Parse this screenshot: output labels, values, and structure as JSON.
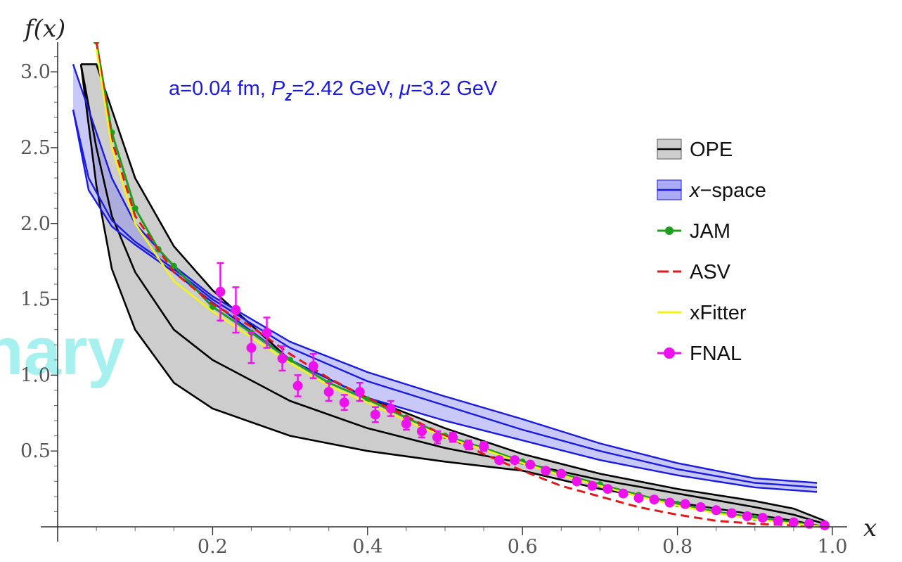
{
  "chart_data": {
    "type": "line",
    "annotation": "a=0.04 fm, P_z=2.42 GeV, μ=3.2 GeV",
    "watermark": "nary",
    "xlabel": "x",
    "ylabel": "f(x)",
    "xlim": [
      0.0,
      1.0
    ],
    "ylim": [
      0.0,
      3.2
    ],
    "x_ticks": [
      "0.2",
      "0.4",
      "0.6",
      "0.8",
      "1.0"
    ],
    "y_ticks": [
      "0.5",
      "1.0",
      "1.5",
      "2.0",
      "2.5",
      "3.0"
    ],
    "legend_position": "right",
    "series": [
      {
        "name": "OPE",
        "kind": "band",
        "color": "#000000",
        "fill": "#c8c8c8",
        "x": [
          0.03,
          0.05,
          0.07,
          0.1,
          0.15,
          0.2,
          0.3,
          0.4,
          0.5,
          0.6,
          0.7,
          0.8,
          0.9,
          0.95,
          0.99
        ],
        "upper": [
          3.05,
          3.05,
          2.75,
          2.3,
          1.85,
          1.56,
          1.1,
          0.85,
          0.65,
          0.48,
          0.35,
          0.25,
          0.17,
          0.12,
          0.04
        ],
        "central": [
          3.05,
          2.5,
          2.05,
          1.68,
          1.3,
          1.1,
          0.83,
          0.65,
          0.52,
          0.42,
          0.31,
          0.22,
          0.13,
          0.08,
          0.02
        ],
        "lower": [
          3.05,
          2.25,
          1.7,
          1.3,
          0.95,
          0.78,
          0.6,
          0.5,
          0.43,
          0.37,
          0.25,
          0.16,
          0.08,
          0.04,
          0.0
        ]
      },
      {
        "name": "x−space",
        "kind": "band",
        "color": "#1a1ae0",
        "fill": "#8888f2",
        "x": [
          0.02,
          0.04,
          0.07,
          0.1,
          0.15,
          0.2,
          0.3,
          0.4,
          0.5,
          0.6,
          0.7,
          0.8,
          0.9,
          0.98
        ],
        "upper": [
          3.05,
          2.75,
          2.3,
          2.0,
          1.72,
          1.52,
          1.22,
          1.02,
          0.86,
          0.71,
          0.55,
          0.42,
          0.32,
          0.29
        ],
        "central": [
          2.75,
          2.3,
          2.02,
          1.88,
          1.7,
          1.5,
          1.18,
          0.96,
          0.8,
          0.64,
          0.5,
          0.38,
          0.29,
          0.26
        ],
        "lower": [
          2.75,
          2.22,
          1.98,
          1.86,
          1.68,
          1.48,
          1.1,
          0.85,
          0.7,
          0.57,
          0.44,
          0.34,
          0.26,
          0.23
        ]
      },
      {
        "name": "JAM",
        "kind": "line-dots",
        "color": "#1e9e1e",
        "x": [
          0.05,
          0.07,
          0.1,
          0.13,
          0.15,
          0.2,
          0.25,
          0.3,
          0.35,
          0.4,
          0.45,
          0.5,
          0.55,
          0.6,
          0.65,
          0.7,
          0.75,
          0.8,
          0.85,
          0.9,
          0.95,
          0.99
        ],
        "values": [
          3.2,
          2.6,
          2.1,
          1.83,
          1.72,
          1.45,
          1.28,
          1.1,
          0.95,
          0.84,
          0.72,
          0.6,
          0.52,
          0.43,
          0.35,
          0.28,
          0.21,
          0.15,
          0.1,
          0.06,
          0.03,
          0.0
        ]
      },
      {
        "name": "ASV",
        "kind": "dashed",
        "color": "#e01a1a",
        "x": [
          0.05,
          0.07,
          0.1,
          0.15,
          0.2,
          0.25,
          0.3,
          0.35,
          0.4,
          0.45,
          0.5,
          0.55,
          0.6,
          0.65,
          0.7,
          0.75,
          0.8,
          0.85,
          0.9,
          0.95,
          0.99
        ],
        "values": [
          3.2,
          2.55,
          2.05,
          1.68,
          1.47,
          1.32,
          1.14,
          0.98,
          0.85,
          0.73,
          0.6,
          0.48,
          0.37,
          0.27,
          0.2,
          0.13,
          0.08,
          0.04,
          0.02,
          0.01,
          0.0
        ]
      },
      {
        "name": "xFitter",
        "kind": "line",
        "color": "#f4f41a",
        "x": [
          0.05,
          0.07,
          0.1,
          0.15,
          0.2,
          0.25,
          0.3,
          0.35,
          0.4,
          0.45,
          0.5,
          0.55,
          0.6,
          0.65,
          0.7,
          0.75,
          0.8,
          0.85,
          0.9,
          0.95,
          0.99
        ],
        "values": [
          3.15,
          2.5,
          2.0,
          1.62,
          1.42,
          1.25,
          1.08,
          0.93,
          0.82,
          0.7,
          0.59,
          0.51,
          0.42,
          0.34,
          0.27,
          0.2,
          0.14,
          0.09,
          0.05,
          0.02,
          0.0
        ]
      },
      {
        "name": "FNAL",
        "kind": "points-errorbars",
        "color": "#ee11ee",
        "points": [
          {
            "x": 0.21,
            "y": 1.55,
            "err": 0.19
          },
          {
            "x": 0.23,
            "y": 1.43,
            "err": 0.15
          },
          {
            "x": 0.25,
            "y": 1.18,
            "err": 0.1
          },
          {
            "x": 0.27,
            "y": 1.28,
            "err": 0.1
          },
          {
            "x": 0.29,
            "y": 1.11,
            "err": 0.08
          },
          {
            "x": 0.31,
            "y": 0.93,
            "err": 0.07
          },
          {
            "x": 0.33,
            "y": 1.06,
            "err": 0.08
          },
          {
            "x": 0.35,
            "y": 0.89,
            "err": 0.06
          },
          {
            "x": 0.37,
            "y": 0.82,
            "err": 0.05
          },
          {
            "x": 0.39,
            "y": 0.89,
            "err": 0.06
          },
          {
            "x": 0.41,
            "y": 0.74,
            "err": 0.05
          },
          {
            "x": 0.43,
            "y": 0.78,
            "err": 0.05
          },
          {
            "x": 0.45,
            "y": 0.68,
            "err": 0.04
          },
          {
            "x": 0.47,
            "y": 0.63,
            "err": 0.04
          },
          {
            "x": 0.49,
            "y": 0.59,
            "err": 0.04
          },
          {
            "x": 0.51,
            "y": 0.59,
            "err": 0.03
          },
          {
            "x": 0.53,
            "y": 0.54,
            "err": 0.03
          },
          {
            "x": 0.55,
            "y": 0.53,
            "err": 0.03
          },
          {
            "x": 0.57,
            "y": 0.44,
            "err": 0.02
          },
          {
            "x": 0.59,
            "y": 0.44,
            "err": 0.02
          },
          {
            "x": 0.61,
            "y": 0.41,
            "err": 0.02
          },
          {
            "x": 0.63,
            "y": 0.37,
            "err": 0.02
          },
          {
            "x": 0.65,
            "y": 0.35,
            "err": 0.02
          },
          {
            "x": 0.67,
            "y": 0.3,
            "err": 0.02
          },
          {
            "x": 0.69,
            "y": 0.27,
            "err": 0.02
          },
          {
            "x": 0.71,
            "y": 0.25,
            "err": 0.02
          },
          {
            "x": 0.73,
            "y": 0.22,
            "err": 0.02
          },
          {
            "x": 0.75,
            "y": 0.19,
            "err": 0.02
          },
          {
            "x": 0.77,
            "y": 0.18,
            "err": 0.02
          },
          {
            "x": 0.79,
            "y": 0.16,
            "err": 0.02
          },
          {
            "x": 0.81,
            "y": 0.15,
            "err": 0.02
          },
          {
            "x": 0.83,
            "y": 0.13,
            "err": 0.02
          },
          {
            "x": 0.85,
            "y": 0.11,
            "err": 0.02
          },
          {
            "x": 0.87,
            "y": 0.09,
            "err": 0.02
          },
          {
            "x": 0.89,
            "y": 0.07,
            "err": 0.02
          },
          {
            "x": 0.91,
            "y": 0.06,
            "err": 0.02
          },
          {
            "x": 0.93,
            "y": 0.04,
            "err": 0.02
          },
          {
            "x": 0.95,
            "y": 0.03,
            "err": 0.02
          },
          {
            "x": 0.97,
            "y": 0.02,
            "err": 0.02
          },
          {
            "x": 0.99,
            "y": 0.01,
            "err": 0.02
          }
        ]
      }
    ]
  }
}
